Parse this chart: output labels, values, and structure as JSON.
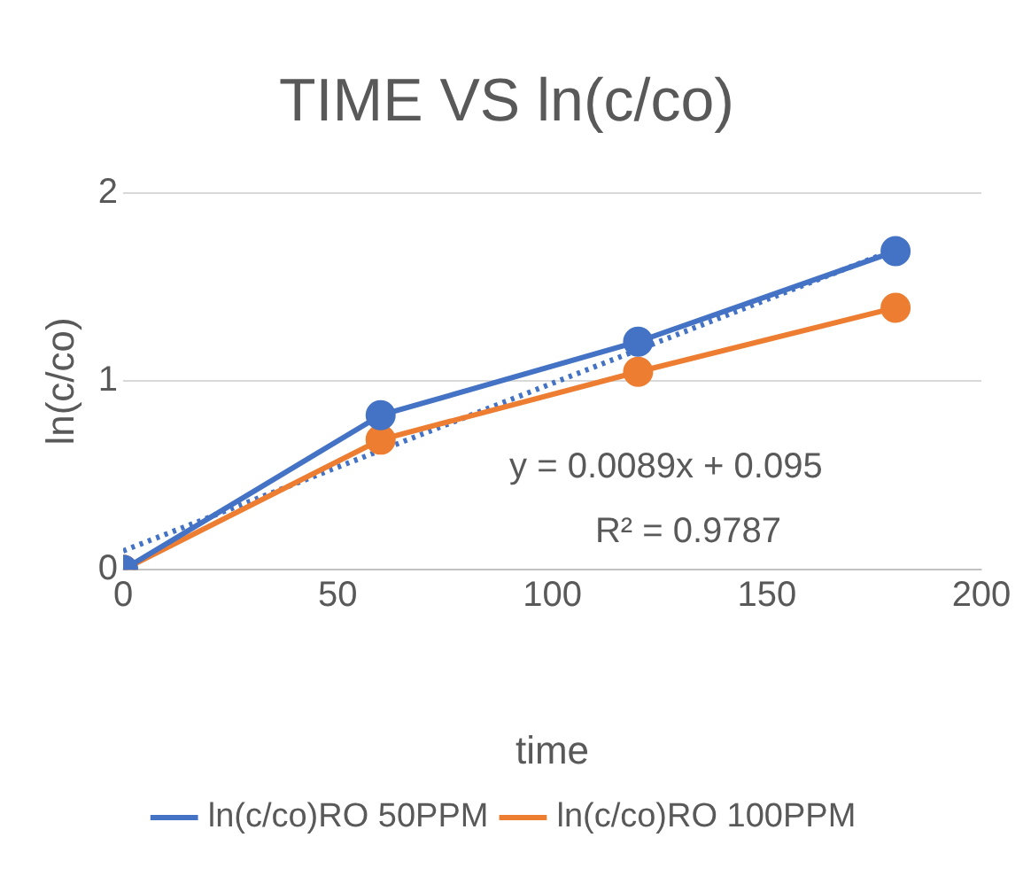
{
  "chart_data": {
    "type": "line",
    "title": "TIME VS ln(c/co)",
    "xlabel": "time",
    "ylabel": "ln(c/co)",
    "x": [
      0,
      60,
      120,
      180
    ],
    "series": [
      {
        "name": "ln(c/co)RO 50PPM",
        "color": "#4472c4",
        "values": [
          0,
          0.82,
          1.21,
          1.69
        ]
      },
      {
        "name": "ln(c/co)RO 100PPM",
        "color": "#ed7d31",
        "values": [
          0,
          0.69,
          1.05,
          1.39
        ]
      },
      {
        "type": "line",
        "x": [
          0,
          180
        ],
        "values": [
          0.1,
          1.7
        ],
        "color": "#4472c4",
        "line_style": "dotted",
        "marker": "none"
      }
    ],
    "xlim": [
      0,
      200
    ],
    "xticks": [
      0,
      50,
      100,
      150,
      200
    ],
    "ylim": [
      0,
      2
    ],
    "yticks": [
      0,
      1,
      2
    ],
    "grid": "y",
    "legend": "bottom",
    "marker": "circle",
    "line_style": "solid",
    "annotations": [
      "y = 0.0089x + 0.095",
      "R² = 0.9787"
    ]
  }
}
